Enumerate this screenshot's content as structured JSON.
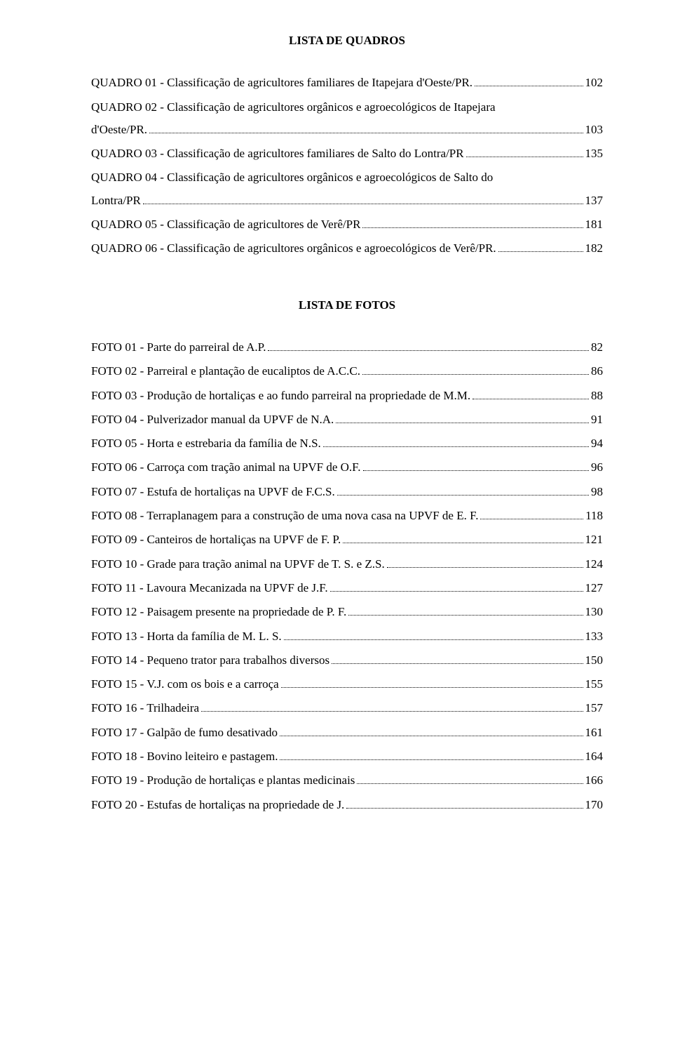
{
  "sections": {
    "quadros": {
      "title": "LISTA DE QUADROS",
      "entries": [
        {
          "lines": [
            "QUADRO 01 - Classificação de agricultores familiares de Itapejara d'Oeste/PR."
          ],
          "page": "102"
        },
        {
          "lines": [
            "QUADRO 02 - Classificação de agricultores orgânicos e agroecológicos de Itapejara",
            "d'Oeste/PR."
          ],
          "page": "103"
        },
        {
          "lines": [
            "QUADRO 03 - Classificação de agricultores familiares de Salto do Lontra/PR"
          ],
          "page": "135"
        },
        {
          "lines": [
            "QUADRO 04 - Classificação de agricultores orgânicos e agroecológicos de Salto do",
            "Lontra/PR"
          ],
          "page": "137"
        },
        {
          "lines": [
            "QUADRO 05 - Classificação de agricultores de Verê/PR"
          ],
          "page": "181"
        },
        {
          "lines": [
            "QUADRO 06 - Classificação de agricultores orgânicos e agroecológicos de Verê/PR."
          ],
          "page": "182"
        }
      ]
    },
    "fotos": {
      "title": "LISTA DE FOTOS",
      "entries": [
        {
          "lines": [
            "FOTO 01 - Parte do parreiral de A.P."
          ],
          "page": "82"
        },
        {
          "lines": [
            "FOTO 02 - Parreiral e plantação de eucaliptos de A.C.C. "
          ],
          "page": "86"
        },
        {
          "lines": [
            "FOTO 03 - Produção de hortaliças e ao fundo parreiral na propriedade de M.M."
          ],
          "page": "88"
        },
        {
          "lines": [
            "FOTO 04 - Pulverizador manual da UPVF de N.A."
          ],
          "page": "91"
        },
        {
          "lines": [
            "FOTO 05 - Horta e estrebaria da família de N.S."
          ],
          "page": "94"
        },
        {
          "lines": [
            "FOTO 06 - Carroça com tração animal na UPVF de O.F. "
          ],
          "page": "96"
        },
        {
          "lines": [
            "FOTO 07 - Estufa de hortaliças na UPVF de F.C.S."
          ],
          "page": "98"
        },
        {
          "lines": [
            "FOTO 08 - Terraplanagem para a construção de uma nova casa na UPVF de E. F. "
          ],
          "page": "118"
        },
        {
          "lines": [
            "FOTO 09 - Canteiros de hortaliças na UPVF de F. P. "
          ],
          "page": "121"
        },
        {
          "lines": [
            "FOTO 10 - Grade para tração animal na UPVF de T. S. e Z.S. "
          ],
          "page": "124"
        },
        {
          "lines": [
            "FOTO 11 - Lavoura Mecanizada na UPVF de J.F. "
          ],
          "page": "127"
        },
        {
          "lines": [
            "FOTO 12 - Paisagem presente na propriedade de P. F."
          ],
          "page": "130"
        },
        {
          "lines": [
            "FOTO 13 - Horta da família de M. L. S. "
          ],
          "page": "133"
        },
        {
          "lines": [
            "FOTO 14 - Pequeno trator para trabalhos diversos "
          ],
          "page": "150"
        },
        {
          "lines": [
            "FOTO 15 - V.J. com os bois e a carroça "
          ],
          "page": "155"
        },
        {
          "lines": [
            "FOTO 16 - Trilhadeira "
          ],
          "page": "157"
        },
        {
          "lines": [
            "FOTO 17 - Galpão de fumo desativado"
          ],
          "page": "161"
        },
        {
          "lines": [
            "FOTO 18 - Bovino leiteiro e pastagem. "
          ],
          "page": "164"
        },
        {
          "lines": [
            "FOTO 19 - Produção de hortaliças e plantas medicinais"
          ],
          "page": "166"
        },
        {
          "lines": [
            "FOTO 20 - Estufas de hortaliças na propriedade de J. "
          ],
          "page": "170"
        }
      ]
    }
  }
}
